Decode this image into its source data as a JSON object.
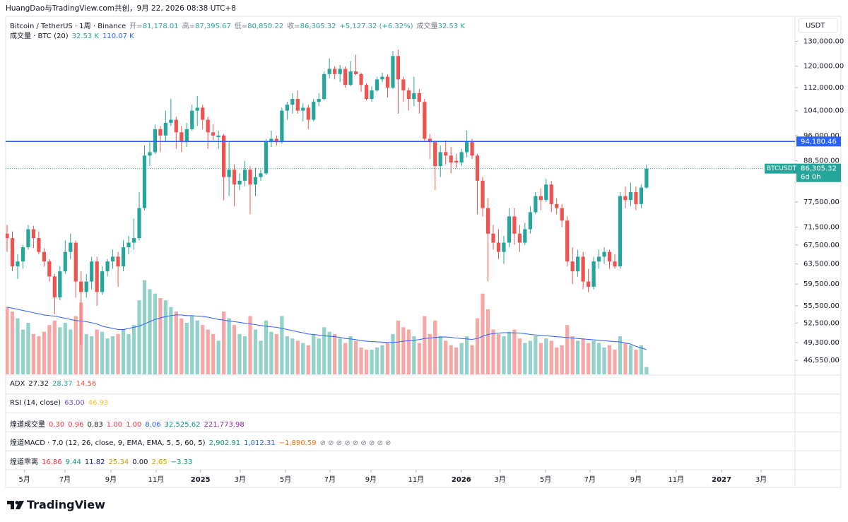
{
  "chart_data": {
    "type": "candlestick",
    "header": "HuangDao与TradingView.com共创，9月 22, 2026 08:38 UTC+8",
    "title": "Bitcoin / TetherUS · 1周 · Binance",
    "ohlc_fields": [
      {
        "label": "开=",
        "value": "81,178.01"
      },
      {
        "label": "高=",
        "value": "87,395.67"
      },
      {
        "label": "低=",
        "value": "80,850.22"
      },
      {
        "label": "收=",
        "value": "86,305.32"
      }
    ],
    "change": "+5,127.32 (+6.32%)",
    "volume_field": {
      "label": "成交量",
      "value": "32.53 K"
    },
    "volume_legend": {
      "label": "成交量 · BTC (20)",
      "values": [
        "32.53 K",
        "110.07 K"
      ],
      "colors": [
        "#26a69a",
        "#2962ff"
      ]
    },
    "currency": "USDT",
    "symbol": "BTCUSDT",
    "countdown": "6d 0h",
    "last_price": {
      "value": 86305.32,
      "label": "86,305.32"
    },
    "hline": {
      "value": 94180.46,
      "label": "94,180.46",
      "color": "#2962ff"
    },
    "up_color": "#26a69a",
    "down_color": "#ef5350",
    "volume_up_color": "#93d1cb",
    "volume_down_color": "#f7a8a6",
    "volume_ma_color": "#2962ff",
    "log_scale": true,
    "grid": false,
    "ylim": [
      44500,
      140300
    ],
    "yticks": [
      {
        "value": 130000,
        "label": "130,000.00"
      },
      {
        "value": 120000,
        "label": "120,000.00"
      },
      {
        "value": 112000,
        "label": "112,000.00"
      },
      {
        "value": 104000,
        "label": "104,000.00"
      },
      {
        "value": 96000,
        "label": "96,000.00"
      },
      {
        "value": 88500,
        "label": "88,500.00"
      },
      {
        "value": 77500,
        "label": "77,500.00"
      },
      {
        "value": 71500,
        "label": "71,500.00"
      },
      {
        "value": 67500,
        "label": "67,500.00"
      },
      {
        "value": 63500,
        "label": "63,500.00"
      },
      {
        "value": 59500,
        "label": "59,500.00"
      },
      {
        "value": 55500,
        "label": "55,500.00"
      },
      {
        "value": 52500,
        "label": "52,500.00"
      },
      {
        "value": 49300,
        "label": "49,300.00"
      },
      {
        "value": 46550,
        "label": "46,550.00"
      }
    ],
    "xlim": [
      -1.34,
      149.1
    ],
    "xticks": [
      {
        "value": 3.3,
        "label": "5月"
      },
      {
        "value": 10.96,
        "label": "7月"
      },
      {
        "value": 19.65,
        "label": "9月"
      },
      {
        "value": 28.2,
        "label": "11月"
      },
      {
        "value": 36.6,
        "label": "2025"
      },
      {
        "value": 44.1,
        "label": "3月"
      },
      {
        "value": 52.7,
        "label": "5月"
      },
      {
        "value": 61.1,
        "label": "7月"
      },
      {
        "value": 68.85,
        "label": "9月"
      },
      {
        "value": 77.4,
        "label": "11月"
      },
      {
        "value": 85.96,
        "label": "2026"
      },
      {
        "value": 93.3,
        "label": "3月"
      },
      {
        "value": 101.9,
        "label": "5月"
      },
      {
        "value": 110.3,
        "label": "7月"
      },
      {
        "value": 119.0,
        "label": "9月"
      },
      {
        "value": 126.6,
        "label": "11月"
      },
      {
        "value": 135.2,
        "label": "2027"
      },
      {
        "value": 142.7,
        "label": "3月"
      }
    ],
    "candles": [
      [
        70000,
        72000,
        66000,
        69000
      ],
      [
        69000,
        70500,
        62000,
        63000
      ],
      [
        63000,
        65500,
        60500,
        64000
      ],
      [
        64000,
        67500,
        62500,
        67000
      ],
      [
        67000,
        72000,
        66500,
        71000
      ],
      [
        71000,
        71800,
        66800,
        69000
      ],
      [
        69000,
        70500,
        65500,
        66000
      ],
      [
        66000,
        66800,
        63000,
        64000
      ],
      [
        64000,
        64500,
        60000,
        61000
      ],
      [
        61000,
        61500,
        54000,
        57000
      ],
      [
        57000,
        63000,
        56500,
        62000
      ],
      [
        62000,
        68500,
        61500,
        66000
      ],
      [
        66000,
        70000,
        64500,
        68000
      ],
      [
        68000,
        68500,
        57000,
        60000
      ],
      [
        60000,
        62000,
        49000,
        58000
      ],
      [
        58000,
        61500,
        57000,
        60000
      ],
      [
        60000,
        65000,
        58500,
        64000
      ],
      [
        64000,
        65000,
        55500,
        58000
      ],
      [
        58000,
        63000,
        57500,
        62000
      ],
      [
        62000,
        64500,
        61000,
        64000
      ],
      [
        64000,
        66500,
        62500,
        65000
      ],
      [
        65000,
        66000,
        59000,
        63000
      ],
      [
        63000,
        68500,
        62000,
        67000
      ],
      [
        67000,
        69500,
        65500,
        68000
      ],
      [
        68000,
        73500,
        66500,
        69000
      ],
      [
        69000,
        80000,
        68500,
        76000
      ],
      [
        76000,
        93000,
        75500,
        90000
      ],
      [
        90000,
        94000,
        87000,
        91000
      ],
      [
        91000,
        99500,
        90500,
        98000
      ],
      [
        98000,
        99000,
        91000,
        96000
      ],
      [
        96000,
        104000,
        94000,
        100000
      ],
      [
        100000,
        108000,
        99000,
        101000
      ],
      [
        101000,
        102000,
        92000,
        97000
      ],
      [
        97000,
        99000,
        91000,
        94000
      ],
      [
        94000,
        100000,
        92500,
        98000
      ],
      [
        98000,
        106000,
        97500,
        104000
      ],
      [
        104000,
        109000,
        99000,
        105000
      ],
      [
        105000,
        106000,
        98000,
        101000
      ],
      [
        101000,
        102000,
        92000,
        97000
      ],
      [
        97000,
        99500,
        94500,
        96000
      ],
      [
        95500,
        97500,
        92000,
        96000
      ],
      [
        96000,
        96500,
        78000,
        84000
      ],
      [
        84000,
        94000,
        79000,
        86000
      ],
      [
        86000,
        87500,
        76500,
        82000
      ],
      [
        82000,
        85000,
        80500,
        83000
      ],
      [
        83000,
        88500,
        81500,
        86000
      ],
      [
        86000,
        87000,
        74500,
        82000
      ],
      [
        82000,
        86500,
        79000,
        84000
      ],
      [
        84000,
        86000,
        83000,
        85000
      ],
      [
        85000,
        95000,
        84500,
        94000
      ],
      [
        94000,
        97500,
        92500,
        95000
      ],
      [
        95000,
        96000,
        93000,
        94000
      ],
      [
        94000,
        105000,
        93500,
        104000
      ],
      [
        104000,
        107000,
        101000,
        106000
      ],
      [
        106000,
        110000,
        103000,
        108000
      ],
      [
        108000,
        111000,
        103000,
        104000
      ],
      [
        104000,
        106500,
        100500,
        105000
      ],
      [
        105000,
        106000,
        98000,
        101000
      ],
      [
        101000,
        108000,
        100500,
        107000
      ],
      [
        107000,
        110000,
        105500,
        108000
      ],
      [
        108000,
        118000,
        107500,
        117000
      ],
      [
        117000,
        123000,
        115500,
        119000
      ],
      [
        119000,
        120000,
        115000,
        117000
      ],
      [
        117000,
        120500,
        114000,
        119000
      ],
      [
        119000,
        120000,
        112000,
        113000
      ],
      [
        113000,
        122000,
        112500,
        118000
      ],
      [
        118000,
        124500,
        116500,
        117000
      ],
      [
        117000,
        117500,
        110500,
        113000
      ],
      [
        113000,
        113500,
        107500,
        108000
      ],
      [
        108000,
        112500,
        107000,
        111000
      ],
      [
        111000,
        116000,
        110500,
        115000
      ],
      [
        115000,
        117500,
        114000,
        116000
      ],
      [
        116000,
        117000,
        108500,
        112000
      ],
      [
        112000,
        126000,
        111500,
        124000
      ],
      [
        124000,
        126500,
        103000,
        115000
      ],
      [
        115000,
        116000,
        107000,
        111000
      ],
      [
        111000,
        112000,
        104000,
        108000
      ],
      [
        108000,
        116000,
        105500,
        110000
      ],
      [
        110000,
        111500,
        103000,
        107000
      ],
      [
        107000,
        108000,
        94000,
        95000
      ],
      [
        95000,
        96500,
        89000,
        94000
      ],
      [
        94000,
        94500,
        80500,
        87000
      ],
      [
        87000,
        93000,
        84000,
        91000
      ],
      [
        91000,
        94500,
        87500,
        90000
      ],
      [
        90000,
        92500,
        85000,
        88000
      ],
      [
        88500,
        90500,
        86500,
        88000
      ],
      [
        88000,
        92000,
        87000,
        91000
      ],
      [
        91000,
        97500,
        89500,
        94000
      ],
      [
        94000,
        95000,
        89000,
        90000
      ],
      [
        90000,
        90500,
        74500,
        83000
      ],
      [
        83000,
        84000,
        74000,
        76000
      ],
      [
        76000,
        78500,
        60000,
        70000
      ],
      [
        70000,
        72000,
        66500,
        68000
      ],
      [
        68000,
        71000,
        64500,
        66000
      ],
      [
        66000,
        69500,
        63500,
        68000
      ],
      [
        68000,
        76000,
        67000,
        74000
      ],
      [
        74000,
        76000,
        67500,
        70000
      ],
      [
        70000,
        72000,
        66000,
        68000
      ],
      [
        68000,
        72500,
        67500,
        71000
      ],
      [
        71000,
        76500,
        70000,
        75000
      ],
      [
        75000,
        80000,
        74500,
        79000
      ],
      [
        79000,
        81000,
        75500,
        78000
      ],
      [
        78000,
        83500,
        77500,
        82000
      ],
      [
        82000,
        83000,
        75000,
        77000
      ],
      [
        77000,
        78500,
        74500,
        76000
      ],
      [
        76000,
        77000,
        71500,
        73000
      ],
      [
        73000,
        74000,
        63000,
        64000
      ],
      [
        64000,
        67000,
        59500,
        62000
      ],
      [
        62000,
        66500,
        61000,
        65000
      ],
      [
        65000,
        66000,
        58500,
        60000
      ],
      [
        60000,
        62500,
        58000,
        59000
      ],
      [
        59000,
        65000,
        58500,
        64000
      ],
      [
        64000,
        66500,
        62500,
        65000
      ],
      [
        65000,
        67000,
        63500,
        66000
      ],
      [
        66000,
        66500,
        62500,
        64000
      ],
      [
        64000,
        65500,
        62500,
        63000
      ],
      [
        63000,
        80000,
        62500,
        79000
      ],
      [
        79000,
        81500,
        76000,
        78000
      ],
      [
        78000,
        82500,
        76500,
        80000
      ],
      [
        80000,
        81500,
        75500,
        77000
      ],
      [
        77000,
        82000,
        76000,
        81178.01
      ],
      [
        81178.01,
        87395.67,
        80850.22,
        86305.32
      ]
    ],
    "vlim": [
      0,
      400
    ],
    "volume": [
      300,
      280,
      250,
      200,
      230,
      180,
      170,
      190,
      220,
      240,
      210,
      230,
      200,
      260,
      320,
      180,
      170,
      200,
      190,
      160,
      170,
      180,
      200,
      180,
      220,
      330,
      420,
      380,
      360,
      340,
      330,
      300,
      280,
      250,
      230,
      260,
      240,
      220,
      200,
      180,
      150,
      280,
      250,
      220,
      180,
      170,
      260,
      200,
      150,
      240,
      190,
      180,
      260,
      170,
      160,
      150,
      140,
      130,
      180,
      160,
      210,
      190,
      180,
      160,
      140,
      170,
      150,
      120,
      110,
      110,
      120,
      130,
      140,
      180,
      240,
      210,
      200,
      170,
      140,
      260,
      180,
      240,
      170,
      150,
      130,
      120,
      140,
      170,
      130,
      250,
      360,
      290,
      200,
      180,
      170,
      190,
      200,
      160,
      140,
      150,
      170,
      140,
      160,
      150,
      120,
      130,
      220,
      170,
      150,
      160,
      140,
      150,
      140,
      120,
      130,
      110,
      170,
      140,
      130,
      110,
      130,
      32.53
    ],
    "volume_ma": [
      300,
      295,
      290,
      285,
      280,
      275,
      270,
      265,
      262,
      260,
      255,
      250,
      245,
      240,
      238,
      235,
      230,
      225,
      215,
      210,
      205,
      200,
      200,
      205,
      210,
      215,
      225,
      235,
      245,
      252,
      258,
      262,
      265,
      265,
      262,
      262,
      260,
      258,
      255,
      250,
      245,
      242,
      238,
      235,
      232,
      228,
      225,
      222,
      218,
      215,
      212,
      210,
      205,
      200,
      195,
      190,
      185,
      180,
      178,
      175,
      172,
      170,
      168,
      165,
      160,
      158,
      155,
      150,
      148,
      146,
      145,
      144,
      142,
      142,
      144,
      148,
      150,
      152,
      155,
      160,
      162,
      165,
      166,
      167,
      165,
      162,
      160,
      158,
      156,
      160,
      170,
      178,
      182,
      184,
      186,
      186,
      185,
      184,
      182,
      178,
      176,
      174,
      172,
      170,
      168,
      166,
      164,
      162,
      160,
      158,
      156,
      154,
      152,
      150,
      148,
      146,
      145,
      140,
      135,
      125,
      118,
      110.07
    ],
    "indicators": [
      {
        "name": "ADX",
        "values": [
          "27.32",
          "28.37",
          "14.56"
        ],
        "colors": [
          "#131722",
          "#26a69a",
          "#ef5350"
        ]
      },
      {
        "name": "RSI (14, close)",
        "values": [
          "63.00",
          "46.93"
        ],
        "colors": [
          "#7e57c2",
          "#fbc02d"
        ]
      },
      {
        "name": "煌道成交量",
        "values": [
          "0.30",
          "0.96",
          "0.83",
          "1.00",
          "1.00",
          "8.06",
          "32,525.62",
          "221,773.98"
        ],
        "colors": [
          "#f23645",
          "#f23645",
          "#131722",
          "#f23645",
          "#f23645",
          "#2962ff",
          "#089981",
          "#9c27b0"
        ]
      },
      {
        "name": "煌道MACD · 7.0 (12, 26, close, 9, EMA, EMA, 5, 5, 60, 5)",
        "values": [
          "2,902.91",
          "1,012.31",
          "−1,890.59",
          "⊘ ⊘ ⊘ ⊘ ⊘ ⊘ ⊘ ⊘ ⊘"
        ],
        "colors": [
          "#089981",
          "#2962ff",
          "#ff6d00",
          "#787b86"
        ]
      },
      {
        "name": "煌道乖离",
        "values": [
          "16.86",
          "9.44",
          "11.82",
          "25.34",
          "0.00",
          "2.65",
          "−3.33"
        ],
        "colors": [
          "#f23645",
          "#089981",
          "#1a237e",
          "#c9a000",
          "#131722",
          "#c9a000",
          "#089981"
        ]
      }
    ],
    "brand": "TradingView"
  }
}
